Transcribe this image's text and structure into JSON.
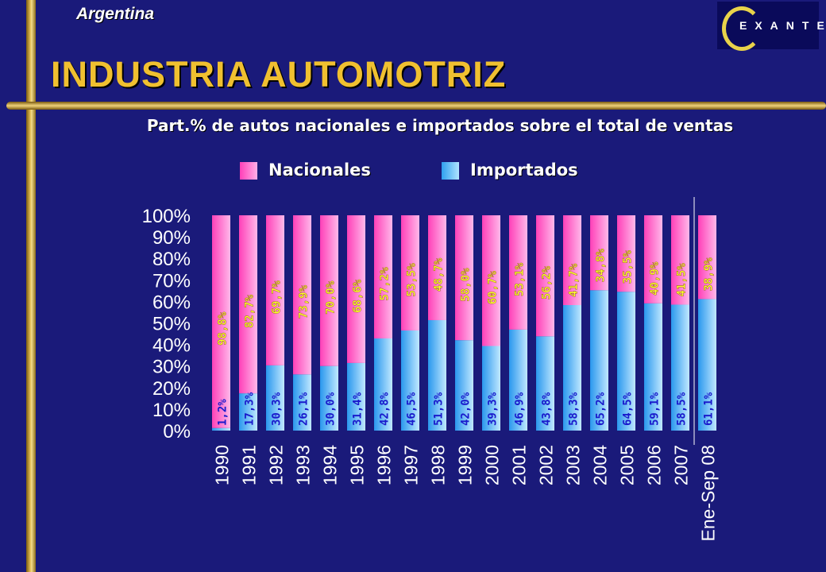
{
  "header": {
    "country": "Argentina",
    "title": "INDUSTRIA AUTOMOTRIZ",
    "logo_text": "EXANTE"
  },
  "colors": {
    "background": "#1a1a7a",
    "title": "#f0c030",
    "nacionales": "#ff66cc",
    "importados": "#66ccff"
  },
  "chart_data": {
    "type": "bar",
    "stacked": true,
    "title": "Part.% de autos nacionales e importados sobre el total de ventas",
    "categories": [
      "1990",
      "1991",
      "1992",
      "1993",
      "1994",
      "1995",
      "1996",
      "1997",
      "1998",
      "1999",
      "2000",
      "2001",
      "2002",
      "2003",
      "2004",
      "2005",
      "2006",
      "2007",
      "Ene-Sep 08"
    ],
    "series": [
      {
        "name": "Importados",
        "values": [
          1.2,
          17.3,
          30.3,
          26.1,
          30.0,
          31.4,
          42.8,
          46.5,
          51.3,
          42.0,
          39.3,
          46.9,
          43.8,
          58.3,
          65.2,
          64.5,
          59.1,
          58.5,
          61.1
        ],
        "labels": [
          "1,2%",
          "17,3%",
          "30,3%",
          "26,1%",
          "30,0%",
          "31,4%",
          "42,8%",
          "46,5%",
          "51,3%",
          "42,0%",
          "39,3%",
          "46,9%",
          "43,8%",
          "58,3%",
          "65,2%",
          "64,5%",
          "59,1%",
          "58,5%",
          "61,1%"
        ]
      },
      {
        "name": "Nacionales",
        "values": [
          98.8,
          82.7,
          69.7,
          73.9,
          70.0,
          68.6,
          57.2,
          53.5,
          48.7,
          58.0,
          60.7,
          53.1,
          56.2,
          41.7,
          34.8,
          35.5,
          40.9,
          41.5,
          38.9
        ],
        "labels": [
          "98,8%",
          "82,7%",
          "69,7%",
          "73,9%",
          "70,0%",
          "68,6%",
          "57,2%",
          "53,5%",
          "48,7%",
          "58,0%",
          "60,7%",
          "53,1%",
          "56,2%",
          "41,7%",
          "34,8%",
          "35,5%",
          "40,9%",
          "41,5%",
          "38,9%"
        ]
      }
    ],
    "y_ticks": [
      "0%",
      "10%",
      "20%",
      "30%",
      "40%",
      "50%",
      "60%",
      "70%",
      "80%",
      "90%",
      "100%"
    ],
    "ylim": [
      0,
      100
    ],
    "legend": [
      "Nacionales",
      "Importados"
    ],
    "legend_position": "top",
    "grid": false
  }
}
